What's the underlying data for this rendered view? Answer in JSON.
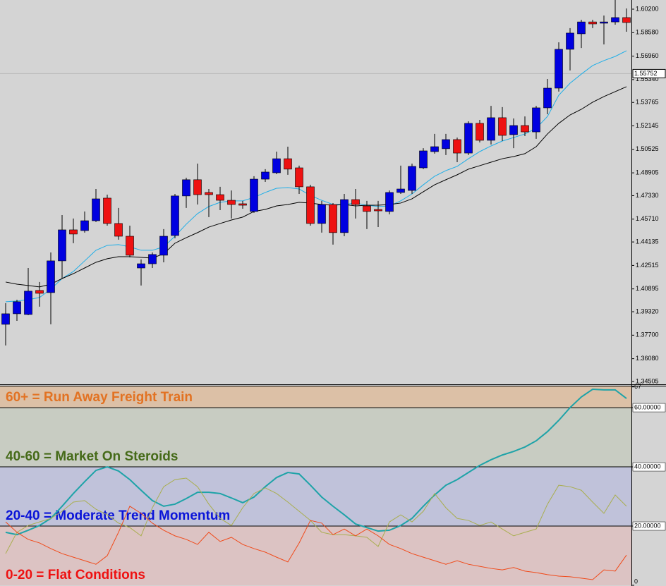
{
  "chart_data": [
    {
      "type": "candlestick",
      "up_color": "#0000e0",
      "down_color": "#ee1111",
      "open": [
        1.3845,
        1.3918,
        1.3913,
        1.4079,
        1.4064,
        1.4283,
        1.4497,
        1.4492,
        1.456,
        1.4716,
        1.4541,
        1.4453,
        1.4234,
        1.4263,
        1.4322,
        1.4458,
        1.4731,
        1.4843,
        1.4755,
        1.474,
        1.4701,
        1.4677,
        1.4624,
        1.4847,
        1.4891,
        1.4988,
        1.4925,
        1.4794,
        1.4541,
        1.4672,
        1.4478,
        1.4706,
        1.4662,
        1.4638,
        1.4624,
        1.4755,
        1.4769,
        1.4925,
        1.5037,
        1.5057,
        1.512,
        1.5027,
        1.5232,
        1.5115,
        1.5271,
        1.5154,
        1.5217,
        1.5173,
        1.5339,
        1.5475,
        1.5743,
        1.585,
        1.5932,
        1.5923,
        1.5932,
        1.5962
      ],
      "high": [
        1.3991,
        1.4015,
        1.4234,
        1.4137,
        1.4341,
        1.4599,
        1.4575,
        1.4624,
        1.4779,
        1.474,
        1.4648,
        1.4526,
        1.4293,
        1.4341,
        1.4502,
        1.4745,
        1.4857,
        1.4954,
        1.4779,
        1.4794,
        1.4769,
        1.4697,
        1.4867,
        1.4916,
        1.5037,
        1.5071,
        1.494,
        1.4808,
        1.4697,
        1.4682,
        1.4745,
        1.4779,
        1.4697,
        1.4697,
        1.4769,
        1.494,
        1.4954,
        1.5061,
        1.5159,
        1.5159,
        1.5134,
        1.5246,
        1.5256,
        1.5353,
        1.5344,
        1.5266,
        1.528,
        1.5353,
        1.5538,
        1.5791,
        1.5889,
        1.5947,
        1.5947,
        1.5976,
        1.6083,
        1.6025
      ],
      "low": [
        1.3699,
        1.3869,
        1.3908,
        1.3967,
        1.3845,
        1.4161,
        1.4405,
        1.4478,
        1.4551,
        1.4526,
        1.4429,
        1.4307,
        1.4113,
        1.4234,
        1.4273,
        1.4439,
        1.4648,
        1.4672,
        1.4585,
        1.4633,
        1.4575,
        1.4643,
        1.4614,
        1.4828,
        1.4881,
        1.4877,
        1.4745,
        1.4526,
        1.4478,
        1.4395,
        1.4453,
        1.4575,
        1.4502,
        1.4516,
        1.4604,
        1.4745,
        1.4745,
        1.4916,
        1.5023,
        1.5013,
        1.4964,
        1.5013,
        1.51,
        1.5086,
        1.511,
        1.5061,
        1.5144,
        1.5125,
        1.5295,
        1.5451,
        1.5597,
        1.5752,
        1.5889,
        1.5777,
        1.5913,
        1.5864
      ],
      "close": [
        1.3918,
        1.4001,
        1.4074,
        1.4059,
        1.4283,
        1.4497,
        1.4468,
        1.456,
        1.4711,
        1.4541,
        1.4453,
        1.4322,
        1.4263,
        1.4327,
        1.4453,
        1.4731,
        1.4843,
        1.474,
        1.474,
        1.4701,
        1.4672,
        1.4667,
        1.4847,
        1.4896,
        1.4988,
        1.4916,
        1.4794,
        1.4541,
        1.4672,
        1.4478,
        1.4706,
        1.4672,
        1.4624,
        1.4628,
        1.4755,
        1.4779,
        1.4935,
        1.5042,
        1.5071,
        1.512,
        1.5027,
        1.5232,
        1.5115,
        1.5271,
        1.5149,
        1.5217,
        1.5173,
        1.5339,
        1.5475,
        1.5743,
        1.5855,
        1.5932,
        1.5918,
        1.5932,
        1.5962,
        1.5928
      ],
      "series": [
        {
          "color": "#1eaee8",
          "values": [
            1.4001,
            1.4006,
            1.4015,
            1.403,
            1.4088,
            1.4161,
            1.421,
            1.4283,
            1.4356,
            1.439,
            1.4395,
            1.438,
            1.4356,
            1.4356,
            1.438,
            1.4453,
            1.4536,
            1.4609,
            1.4658,
            1.4687,
            1.4697,
            1.4697,
            1.4721,
            1.4755,
            1.4784,
            1.4789,
            1.4779,
            1.4735,
            1.4701,
            1.4672,
            1.4672,
            1.4682,
            1.4667,
            1.4658,
            1.4662,
            1.4697,
            1.4745,
            1.4808,
            1.4867,
            1.4906,
            1.4935,
            1.4988,
            1.5037,
            1.5076,
            1.511,
            1.5134,
            1.5159,
            1.5198,
            1.528,
            1.5426,
            1.5509,
            1.5572,
            1.5631,
            1.5665,
            1.5694,
            1.5733
          ]
        },
        {
          "color": "#000000",
          "values": [
            1.4137,
            1.4122,
            1.4113,
            1.4103,
            1.4122,
            1.4161,
            1.4195,
            1.4234,
            1.4273,
            1.4298,
            1.4312,
            1.4312,
            1.4307,
            1.4302,
            1.4332,
            1.4405,
            1.4443,
            1.4478,
            1.4516,
            1.4541,
            1.4565,
            1.4585,
            1.4624,
            1.4638,
            1.4662,
            1.4672,
            1.4687,
            1.4682,
            1.4672,
            1.4667,
            1.4672,
            1.4662,
            1.4667,
            1.4667,
            1.4672,
            1.4682,
            1.4711,
            1.476,
            1.4808,
            1.4843,
            1.4877,
            1.4916,
            1.494,
            1.4964,
            1.4988,
            1.5003,
            1.5023,
            1.5071,
            1.5159,
            1.5232,
            1.529,
            1.5329,
            1.5378,
            1.5417,
            1.5451,
            1.5485
          ]
        }
      ],
      "current_price": {
        "value": 1.55752,
        "label": "1.55752"
      },
      "ylim": [
        1.3431,
        1.60833
      ],
      "yticks": [
        {
          "value": 1.602,
          "label": "1.60200"
        },
        {
          "value": 1.5858,
          "label": "1.58580"
        },
        {
          "value": 1.5696,
          "label": "1.56960"
        },
        {
          "value": 1.5534,
          "label": "1.55340"
        },
        {
          "value": 1.53765,
          "label": "1.53765"
        },
        {
          "value": 1.52145,
          "label": "1.52145"
        },
        {
          "value": 1.50525,
          "label": "1.50525"
        },
        {
          "value": 1.48905,
          "label": "1.48905"
        },
        {
          "value": 1.4733,
          "label": "1.47330"
        },
        {
          "value": 1.4571,
          "label": "1.45710"
        },
        {
          "value": 1.44135,
          "label": "1.44135"
        },
        {
          "value": 1.42515,
          "label": "1.42515"
        },
        {
          "value": 1.40895,
          "label": "1.40895"
        },
        {
          "value": 1.3932,
          "label": "1.39320"
        },
        {
          "value": 1.377,
          "label": "1.37700"
        },
        {
          "value": 1.3608,
          "label": "1.36080"
        },
        {
          "value": 1.34505,
          "label": "1.34505"
        }
      ]
    },
    {
      "type": "line",
      "zones": [
        {
          "from": 0,
          "label": "0-20 = Flat Conditions",
          "color": "#dcc3c3",
          "text_color": "#ee1111"
        },
        {
          "from": 20,
          "label": "20-40 = Moderate Trend Momentum",
          "color": "#c0c2da",
          "text_color": "#0a14d8"
        },
        {
          "from": 40,
          "label": "40-60 = Market On Steroids",
          "color": "#c8ccc2",
          "text_color": "#456a18"
        },
        {
          "from": 60,
          "label": "60+ = Run Away Freight Train",
          "color": "#dcc0a6",
          "text_color": "#e27222"
        }
      ],
      "series": [
        {
          "color": "#1ea3a8",
          "width": 2,
          "values": [
            17.9,
            17.1,
            18.6,
            20.2,
            22.6,
            26.7,
            31.0,
            35.0,
            38.8,
            40.0,
            38.6,
            35.7,
            32.1,
            28.6,
            26.7,
            27.4,
            29.3,
            31.4,
            31.4,
            31.0,
            29.5,
            27.9,
            29.8,
            33.3,
            36.4,
            38.1,
            37.6,
            33.8,
            29.8,
            26.7,
            23.8,
            20.7,
            19.5,
            18.3,
            18.6,
            20.2,
            22.6,
            26.7,
            30.5,
            33.8,
            35.7,
            38.1,
            40.5,
            42.4,
            44.0,
            45.2,
            46.7,
            48.8,
            51.9,
            55.7,
            60.0,
            63.6,
            66.2,
            66.0,
            66.0,
            63.1
          ]
        },
        {
          "color": "#a9ae4e",
          "width": 1,
          "values": [
            10.7,
            17.9,
            20.2,
            21.4,
            22.6,
            25.0,
            28.1,
            28.6,
            25.7,
            23.8,
            21.0,
            19.5,
            16.7,
            26.2,
            33.3,
            35.7,
            36.2,
            33.3,
            27.4,
            22.6,
            20.2,
            26.2,
            31.0,
            32.9,
            31.0,
            28.1,
            25.0,
            21.9,
            17.9,
            17.1,
            17.1,
            16.7,
            16.2,
            13.1,
            21.4,
            23.8,
            21.4,
            25.0,
            31.0,
            26.2,
            22.6,
            21.9,
            20.2,
            21.4,
            19.0,
            16.7,
            17.9,
            19.0,
            27.4,
            33.8,
            33.3,
            32.1,
            28.1,
            24.3,
            30.5,
            26.7
          ]
        },
        {
          "color": "#f04a1a",
          "width": 1,
          "values": [
            21.4,
            17.9,
            15.5,
            14.3,
            12.4,
            10.7,
            9.5,
            8.3,
            7.1,
            10.0,
            17.9,
            26.7,
            24.3,
            21.0,
            18.6,
            16.7,
            15.5,
            13.8,
            17.9,
            14.8,
            16.2,
            13.8,
            12.4,
            11.2,
            9.5,
            7.9,
            14.3,
            21.9,
            21.0,
            17.1,
            19.0,
            16.7,
            19.0,
            16.7,
            13.8,
            12.4,
            10.7,
            9.5,
            8.3,
            7.1,
            8.3,
            7.1,
            6.4,
            5.7,
            5.2,
            6.0,
            4.8,
            4.3,
            3.6,
            3.1,
            2.9,
            2.4,
            1.9,
            5.2,
            4.8,
            10.2
          ]
        }
      ],
      "ylim": [
        0,
        67.4
      ],
      "yticks": [
        0,
        {
          "value": 20,
          "label": "20.00000"
        },
        {
          "value": 40,
          "label": "40.00000"
        },
        {
          "value": 60,
          "label": "60.00000"
        },
        67
      ]
    }
  ]
}
